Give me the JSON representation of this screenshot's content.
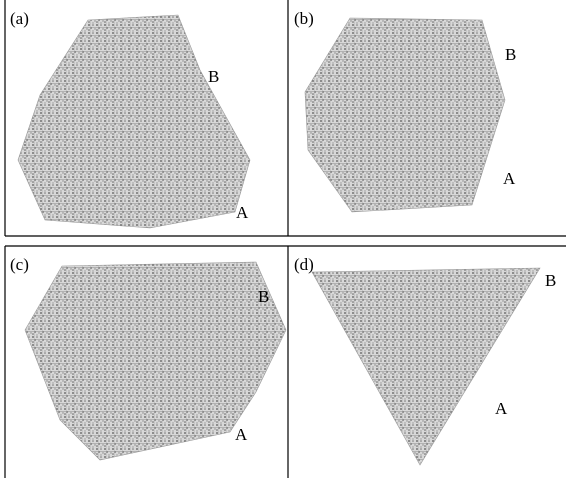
{
  "panels": [
    {
      "label": "(a)",
      "markers": [
        "B",
        "A"
      ]
    },
    {
      "label": "(b)",
      "markers": [
        "B",
        "A"
      ]
    },
    {
      "label": "(c)",
      "markers": [
        "B",
        "A"
      ]
    },
    {
      "label": "(d)",
      "markers": [
        "B",
        "A"
      ]
    }
  ]
}
